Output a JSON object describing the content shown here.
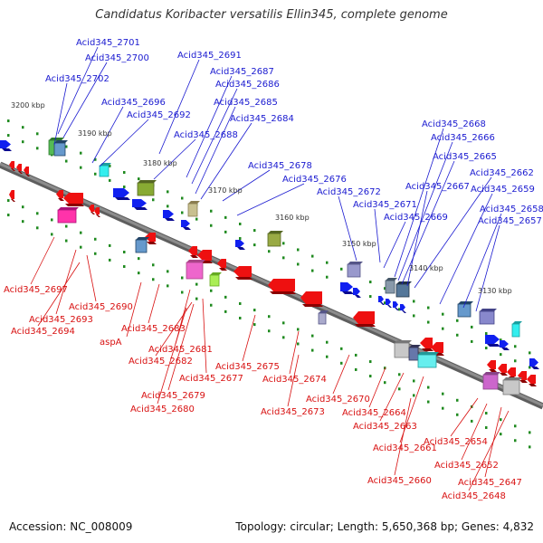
{
  "title": "Candidatus Koribacter versatilis Ellin345, complete genome",
  "footer": {
    "accession": "Accession: NC_008009",
    "summary": "Topology: circular; Length: 5,650,368 bp; Genes: 4,832"
  },
  "colors": {
    "plus_label": "#1a1ad0",
    "minus_label": "#d81010",
    "backbone": "#8c8c8c",
    "tick": "#1f8a1f"
  },
  "kbp_marks": [
    "3200 kbp",
    "3190 kbp",
    "3180 kbp",
    "3170 kbp",
    "3160 kbp",
    "3150 kbp",
    "3140 kbp",
    "3130 kbp"
  ],
  "plus_labels": [
    "Acid345_2701",
    "Acid345_2700",
    "Acid345_2702",
    "Acid345_2691",
    "Acid345_2687",
    "Acid345_2686",
    "Acid345_2696",
    "Acid345_2692",
    "Acid345_2685",
    "Acid345_2684",
    "Acid345_2688",
    "Acid345_2678",
    "Acid345_2676",
    "Acid345_2672",
    "Acid345_2671",
    "Acid345_2669",
    "Acid345_2668",
    "Acid345_2666",
    "Acid345_2665",
    "Acid345_2662",
    "Acid345_2667",
    "Acid345_2659",
    "Acid345_2658",
    "Acid345_2657"
  ],
  "minus_labels": [
    "Acid345_2697",
    "Acid345_2690",
    "Acid345_2693",
    "Acid345_2694",
    "Acid345_2683",
    "aspA",
    "Acid345_2681",
    "Acid345_2682",
    "Acid345_2677",
    "Acid345_2675",
    "Acid345_2679",
    "Acid345_2674",
    "Acid345_2680",
    "Acid345_2670",
    "Acid345_2673",
    "Acid345_2664",
    "Acid345_2663",
    "Acid345_2661",
    "Acid345_2660",
    "Acid345_2654",
    "Acid345_2652",
    "Acid345_2647",
    "Acid345_2648"
  ]
}
